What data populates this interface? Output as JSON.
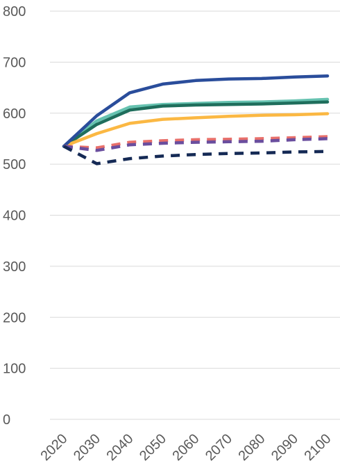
{
  "chart_data": {
    "type": "line",
    "title": "",
    "xlabel": "",
    "ylabel": "",
    "x": [
      2020,
      2030,
      2040,
      2050,
      2060,
      2070,
      2080,
      2090,
      2100
    ],
    "xtick_labels": [
      "2020",
      "2030",
      "2040",
      "2050",
      "2060",
      "2070",
      "2080",
      "2090",
      "2100"
    ],
    "ylim": [
      0,
      800
    ],
    "yticks": [
      0,
      100,
      200,
      300,
      400,
      500,
      600,
      700,
      800
    ],
    "ytick_labels": [
      "0",
      "100",
      "200",
      "300",
      "400",
      "500",
      "600",
      "700",
      "800"
    ],
    "grid": true,
    "legend": "none",
    "series": [
      {
        "color": "#66c2b0",
        "style": "solid",
        "values": [
          535,
          585,
          612,
          617,
          619,
          621,
          622,
          624,
          627
        ]
      },
      {
        "color": "#1f6e5c",
        "style": "solid",
        "values": [
          535,
          578,
          606,
          614,
          616,
          617,
          618,
          620,
          622
        ]
      },
      {
        "color": "#fbb843",
        "style": "solid",
        "values": [
          535,
          560,
          580,
          588,
          591,
          594,
          596,
          597,
          599
        ]
      },
      {
        "color": "#2a4d9b",
        "style": "solid",
        "values": [
          535,
          595,
          640,
          657,
          664,
          667,
          668,
          671,
          673
        ]
      },
      {
        "color": "#e8706b",
        "style": "dashed",
        "values": [
          535,
          532,
          543,
          546,
          548,
          549,
          550,
          552,
          554
        ]
      },
      {
        "color": "#6a4e9e",
        "style": "dashed",
        "values": [
          535,
          527,
          538,
          541,
          543,
          544,
          545,
          548,
          550
        ]
      },
      {
        "color": "#152a55",
        "style": "dashed",
        "values": [
          535,
          501,
          511,
          516,
          519,
          521,
          522,
          524,
          525
        ]
      }
    ]
  }
}
